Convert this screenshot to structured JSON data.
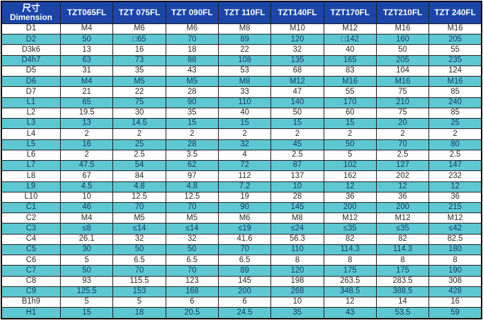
{
  "colors": {
    "header_bg": "#1b46a8",
    "header_text": "#ffffff",
    "stripe_bg": "#5ec8d2",
    "row_bg": "#ffffff",
    "grid": "#1c1c1c",
    "text_dark": "#2a2a2a",
    "stripe_text": "#173b63"
  },
  "table": {
    "corner": {
      "line1": "尺寸",
      "line2": "Dimension"
    },
    "columns": [
      "TZT065FL",
      "TZT 075FL",
      "TZT 090FL",
      "TZT 110FL",
      "TZT140FL",
      "TZT170FL",
      "TZT210FL",
      "TZT 240FL"
    ],
    "rows": [
      {
        "label": "D1",
        "values": [
          "M4",
          "M6",
          "M6",
          "M8",
          "M10",
          "M12",
          "M16",
          "M16"
        ]
      },
      {
        "label": "D2",
        "values": [
          "50",
          "□65",
          "70",
          "89",
          "120",
          "□142",
          "160",
          "205"
        ]
      },
      {
        "label": "D3k6",
        "values": [
          "13",
          "16",
          "18",
          "22",
          "32",
          "40",
          "50",
          "55"
        ]
      },
      {
        "label": "D4h7",
        "values": [
          "63",
          "73",
          "88",
          "108",
          "135",
          "165",
          "205",
          "235"
        ]
      },
      {
        "label": "D5",
        "values": [
          "31",
          "35",
          "43",
          "53",
          "68",
          "83",
          "104",
          "124"
        ]
      },
      {
        "label": "D6",
        "values": [
          "M4",
          "M5",
          "M5",
          "M8",
          "M12",
          "M16",
          "M16",
          "M16"
        ]
      },
      {
        "label": "D7",
        "values": [
          "21",
          "22",
          "28",
          "33",
          "47",
          "55",
          "75",
          "85"
        ]
      },
      {
        "label": "L1",
        "values": [
          "65",
          "75",
          "90",
          "110",
          "140",
          "170",
          "210",
          "240"
        ]
      },
      {
        "label": "L2",
        "values": [
          "19.5",
          "30",
          "35",
          "40",
          "50",
          "60",
          "75",
          "85"
        ]
      },
      {
        "label": "L3",
        "values": [
          "13",
          "14.5",
          "15",
          "15",
          "15",
          "15",
          "20",
          "25"
        ]
      },
      {
        "label": "L4",
        "values": [
          "2",
          "2",
          "2",
          "2",
          "2",
          "2",
          "2",
          "2"
        ]
      },
      {
        "label": "L5",
        "values": [
          "16",
          "25",
          "28",
          "32",
          "45",
          "50",
          "70",
          "80"
        ]
      },
      {
        "label": "L6",
        "values": [
          "2",
          "2.5",
          "3.5",
          "4",
          "2.5",
          "5",
          "2.5",
          "2.5"
        ]
      },
      {
        "label": "L7",
        "values": [
          "47.5",
          "54",
          "62",
          "72",
          "87",
          "102",
          "127",
          "147"
        ]
      },
      {
        "label": "L8",
        "values": [
          "67",
          "84",
          "97",
          "112",
          "137",
          "162",
          "202",
          "232"
        ]
      },
      {
        "label": "L9",
        "values": [
          "4.5",
          "4.8",
          "4.8",
          "7.2",
          "10",
          "12",
          "12",
          "12"
        ]
      },
      {
        "label": "L10",
        "values": [
          "10",
          "12.5",
          "12.5",
          "19",
          "28",
          "36",
          "36",
          "36"
        ]
      },
      {
        "label": "C1",
        "values": [
          "46",
          "70",
          "70",
          "90",
          "145",
          "200",
          "200",
          "215"
        ]
      },
      {
        "label": "C2",
        "values": [
          "M4",
          "M5",
          "M5",
          "M6",
          "M8",
          "M12",
          "M12",
          "M12"
        ]
      },
      {
        "label": "C3",
        "values": [
          "≤8",
          "≤14",
          "≤14",
          "≤19",
          "≤24",
          "≤35",
          "≤35",
          "≤42"
        ]
      },
      {
        "label": "C4",
        "values": [
          "26.1",
          "32",
          "32",
          "41.6",
          "56.3",
          "82",
          "82",
          "82.5"
        ]
      },
      {
        "label": "C5",
        "values": [
          "30",
          "50",
          "50",
          "70",
          "110",
          "114.3",
          "114.3",
          "180"
        ]
      },
      {
        "label": "C6",
        "values": [
          "5",
          "6.5",
          "6.5",
          "6.5",
          "8",
          "8",
          "8",
          "8"
        ]
      },
      {
        "label": "C7",
        "values": [
          "50",
          "70",
          "70",
          "89",
          "120",
          "175",
          "175",
          "190"
        ]
      },
      {
        "label": "C8",
        "values": [
          "93",
          "115.5",
          "123",
          "145",
          "198",
          "263.5",
          "283.5",
          "308"
        ]
      },
      {
        "label": "C9",
        "values": [
          "125.5",
          "153",
          "168",
          "200",
          "268",
          "348.5",
          "388.5",
          "428"
        ]
      },
      {
        "label": "B1h9",
        "values": [
          "5",
          "5",
          "6",
          "6",
          "10",
          "12",
          "14",
          "16"
        ]
      },
      {
        "label": "H1",
        "values": [
          "15",
          "18",
          "20.5",
          "24.5",
          "35",
          "43",
          "53.5",
          "59"
        ]
      }
    ]
  }
}
